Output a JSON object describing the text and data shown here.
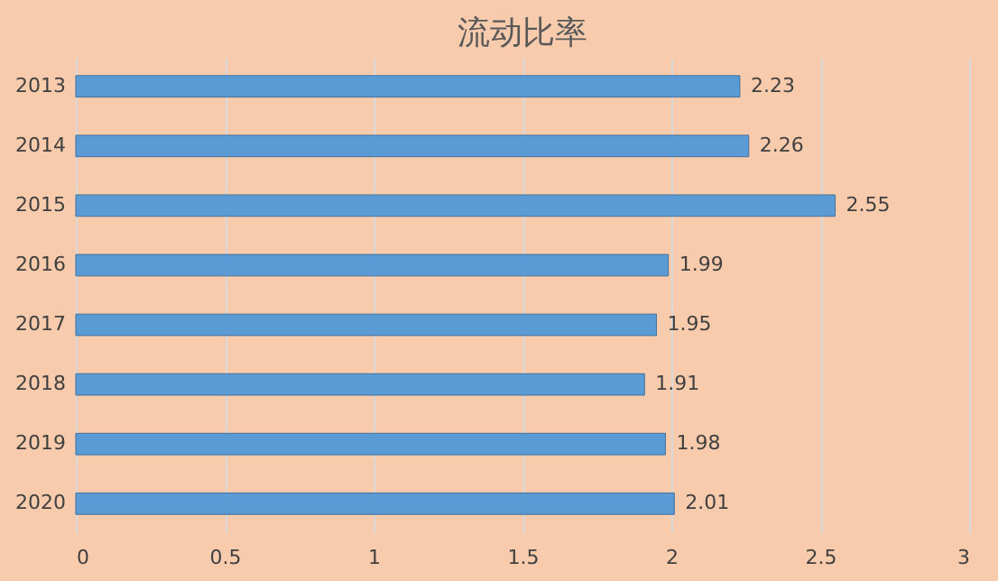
{
  "chart_data": {
    "type": "bar",
    "title": "流动比率",
    "orientation": "horizontal",
    "categories": [
      "2013",
      "2014",
      "2015",
      "2016",
      "2017",
      "2018",
      "2019",
      "2020"
    ],
    "values": [
      2.23,
      2.26,
      2.55,
      1.99,
      1.95,
      1.91,
      1.98,
      2.01
    ],
    "color": "#5b9bd5",
    "xlim": [
      0,
      3
    ],
    "xticks": [
      0,
      0.5,
      1,
      1.5,
      2,
      2.5,
      3
    ],
    "grid": "x",
    "data_labels": true
  }
}
